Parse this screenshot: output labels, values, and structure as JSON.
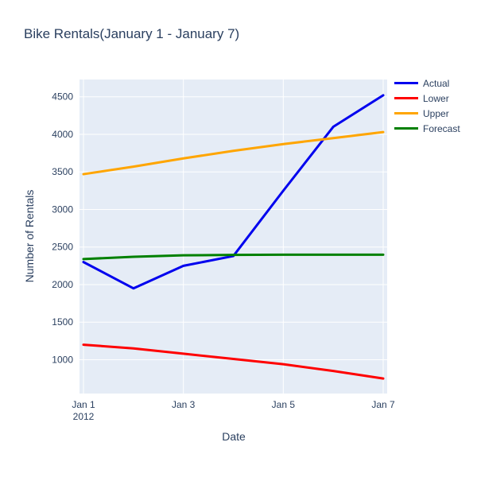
{
  "chart": {
    "title": "Bike Rentals(January 1 - January 7)",
    "xlabel": "Date",
    "ylabel": "Number of Rentals"
  },
  "chart_data": {
    "type": "line",
    "title": "Bike Rentals(January 1 - January 7)",
    "xlabel": "Date",
    "ylabel": "Number of Rentals",
    "x": [
      "Jan 1 2012",
      "Jan 2 2012",
      "Jan 3 2012",
      "Jan 4 2012",
      "Jan 5 2012",
      "Jan 6 2012",
      "Jan 7 2012"
    ],
    "series": [
      {
        "name": "Actual",
        "color": "#0000ee",
        "values": [
          2300,
          1950,
          2250,
          2380,
          3250,
          4100,
          4520
        ]
      },
      {
        "name": "Lower",
        "color": "#ff0000",
        "values": [
          1200,
          1150,
          1080,
          1010,
          940,
          850,
          750
        ]
      },
      {
        "name": "Upper",
        "color": "#ffa500",
        "values": [
          3470,
          3570,
          3680,
          3780,
          3870,
          3950,
          4030
        ]
      },
      {
        "name": "Forecast",
        "color": "#008000",
        "values": [
          2340,
          2370,
          2390,
          2395,
          2398,
          2398,
          2398
        ]
      }
    ],
    "yticks": [
      1000,
      1500,
      2000,
      2500,
      3000,
      3500,
      4000,
      4500
    ],
    "xticks": [
      {
        "label": "Jan 1",
        "sub": "2012",
        "day": 0
      },
      {
        "label": "Jan 3",
        "day": 2
      },
      {
        "label": "Jan 5",
        "day": 4
      },
      {
        "label": "Jan 7",
        "day": 6
      }
    ],
    "ylim": [
      550,
      4730
    ],
    "xlim_days": [
      0,
      6
    ],
    "grid": true,
    "legend_position": "top-right-outside",
    "plot_bg": "#e5ecf6",
    "grid_color": "#ffffff",
    "text_color": "#2a3f5f"
  }
}
